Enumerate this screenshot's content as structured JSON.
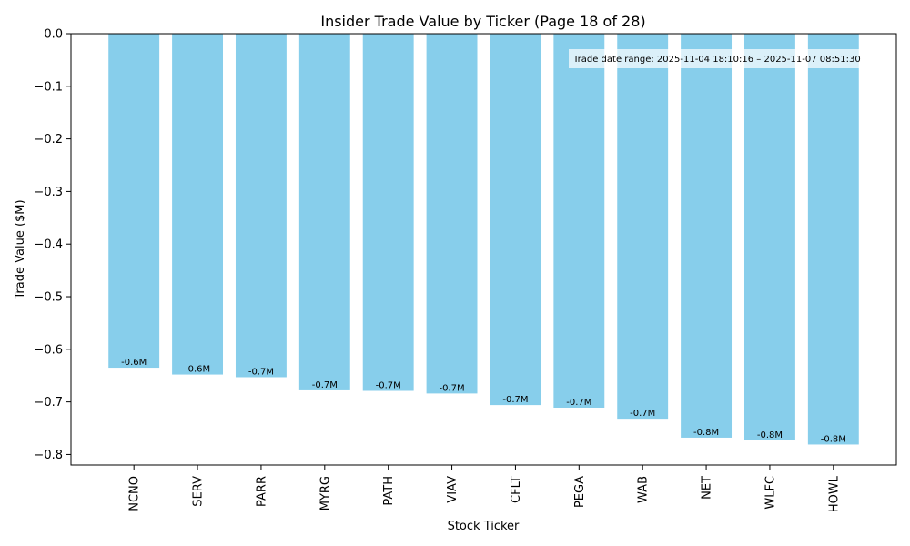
{
  "chart_data": {
    "type": "bar",
    "title": "Insider Trade Value by Ticker (Page 18 of 28)",
    "xlabel": "Stock Ticker",
    "ylabel": "Trade Value ($M)",
    "categories": [
      "NCNO",
      "SERV",
      "PARR",
      "MYRG",
      "PATH",
      "VIAV",
      "CFLT",
      "PEGA",
      "WAB",
      "NET",
      "WLFC",
      "HOWL"
    ],
    "values": [
      -0.635,
      -0.648,
      -0.653,
      -0.678,
      -0.679,
      -0.684,
      -0.706,
      -0.711,
      -0.732,
      -0.768,
      -0.773,
      -0.781
    ],
    "data_labels": [
      "-0.6M",
      "-0.6M",
      "-0.7M",
      "-0.7M",
      "-0.7M",
      "-0.7M",
      "-0.7M",
      "-0.7M",
      "-0.7M",
      "-0.8M",
      "-0.8M",
      "-0.8M"
    ],
    "ylim": [
      -0.82,
      0.0
    ],
    "yticks": [
      0.0,
      -0.1,
      -0.2,
      -0.3,
      -0.4,
      -0.5,
      -0.6,
      -0.7,
      -0.8
    ],
    "ytick_labels": [
      "0.0",
      "−0.1",
      "−0.2",
      "−0.3",
      "−0.4",
      "−0.5",
      "−0.6",
      "−0.7",
      "−0.8"
    ],
    "bar_color": "#87ceeb",
    "grid": false,
    "annotation": "Trade date range: 2025-11-04 18:10:16 – 2025-11-07 08:51:30",
    "annotation_placement": "top-right"
  }
}
